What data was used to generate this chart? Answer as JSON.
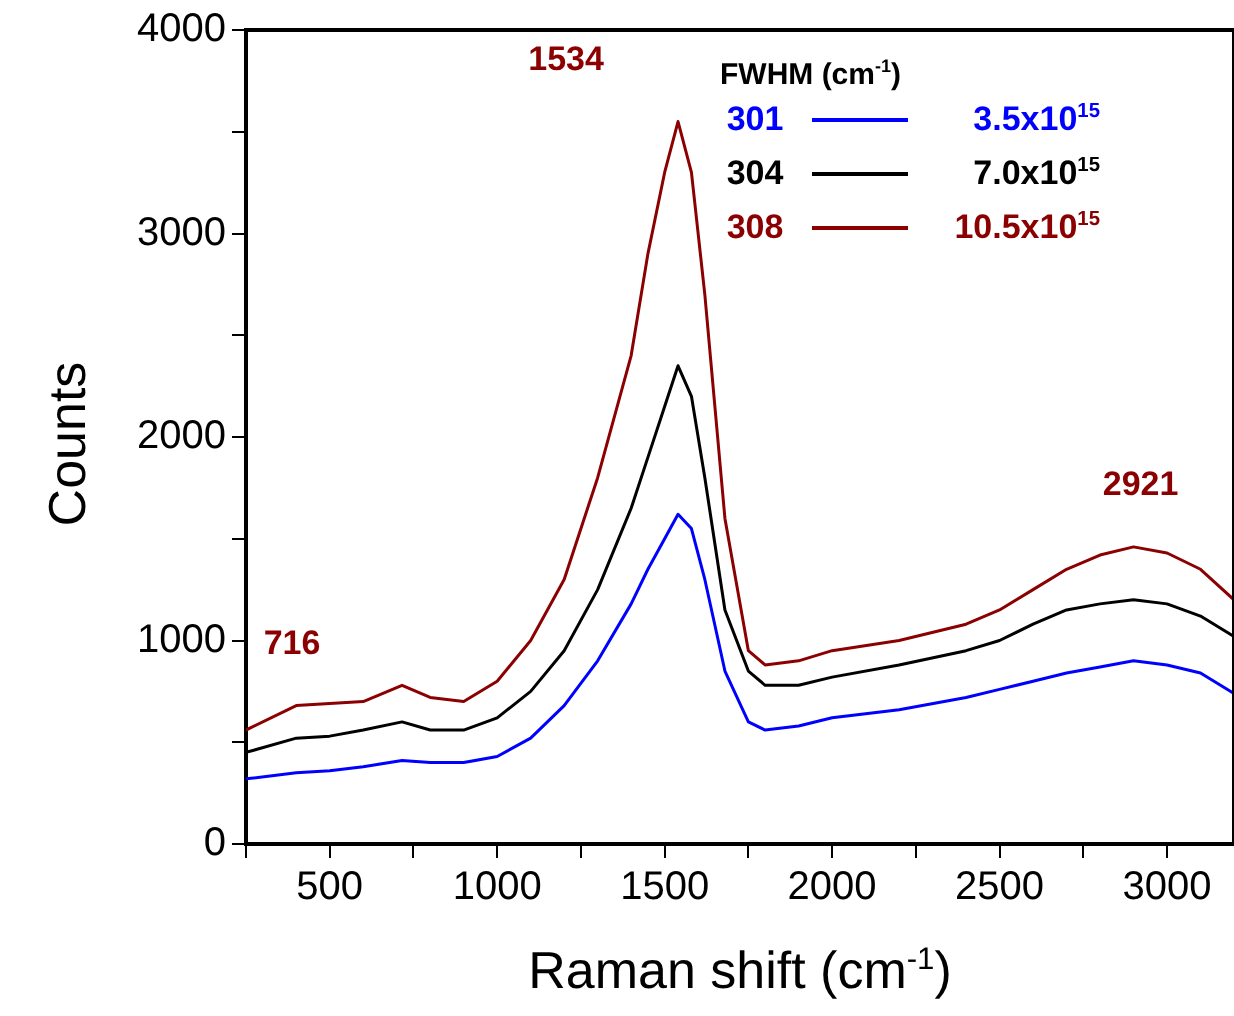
{
  "chart_data": {
    "type": "line",
    "xlabel": "Raman shift (cm$^{-1}$)",
    "ylabel": "Counts",
    "legend_title": "FWHM (cm$^{-1}$)",
    "legend": "top right",
    "grid": false,
    "marker": "none",
    "line_style": "solid",
    "xlim": [
      250,
      3200
    ],
    "xticks": [
      {
        "value": 250,
        "label": null
      },
      500,
      {
        "value": 750,
        "label": null
      },
      1000,
      {
        "value": 1250,
        "label": null
      },
      1500,
      {
        "value": 1750,
        "label": null
      },
      2000,
      {
        "value": 2250,
        "label": null
      },
      2500,
      {
        "value": 2750,
        "label": null
      },
      3000
    ],
    "ylim": [
      0,
      4000
    ],
    "yticks": [
      0,
      {
        "value": 500,
        "label": null
      },
      1000,
      {
        "value": 1500,
        "label": null
      },
      2000,
      {
        "value": 2500,
        "label": null
      },
      3000,
      {
        "value": 3500,
        "label": null
      },
      4000
    ],
    "x": [
      250,
      400,
      500,
      600,
      716,
      800,
      900,
      1000,
      1100,
      1200,
      1300,
      1400,
      1450,
      1500,
      1540,
      1580,
      1620,
      1680,
      1750,
      1800,
      1900,
      2000,
      2200,
      2400,
      2500,
      2600,
      2700,
      2800,
      2900,
      3000,
      3100,
      3200
    ],
    "series": [
      {
        "name": "3.5x10$^{15}$",
        "color": "#0000ff",
        "values": [
          320,
          350,
          360,
          380,
          410,
          400,
          400,
          430,
          520,
          680,
          900,
          1180,
          1350,
          1500,
          1620,
          1550,
          1300,
          850,
          600,
          560,
          580,
          620,
          660,
          720,
          760,
          800,
          840,
          870,
          900,
          880,
          840,
          740
        ]
      },
      {
        "name": "7.0x10$^{15}$",
        "color": "#000000",
        "values": [
          450,
          520,
          530,
          560,
          600,
          560,
          560,
          620,
          750,
          950,
          1250,
          1650,
          1900,
          2150,
          2350,
          2200,
          1800,
          1150,
          850,
          780,
          780,
          820,
          880,
          950,
          1000,
          1080,
          1150,
          1180,
          1200,
          1180,
          1120,
          1020
        ]
      },
      {
        "name": "10.5x10$^{15}$",
        "color": "#8b0000",
        "values": [
          560,
          680,
          690,
          700,
          780,
          720,
          700,
          800,
          1000,
          1300,
          1800,
          2400,
          2900,
          3300,
          3550,
          3300,
          2700,
          1600,
          950,
          880,
          900,
          950,
          1000,
          1080,
          1150,
          1250,
          1350,
          1420,
          1460,
          1430,
          1350,
          1200
        ]
      }
    ],
    "annotations": [
      "301",
      "304",
      "308",
      {
        "text": "716",
        "x": 716,
        "y": 780
      },
      {
        "text": "1534",
        "x": 1534,
        "y": 3550
      },
      {
        "text": "2921",
        "x": 2921,
        "y": 1460
      }
    ]
  }
}
